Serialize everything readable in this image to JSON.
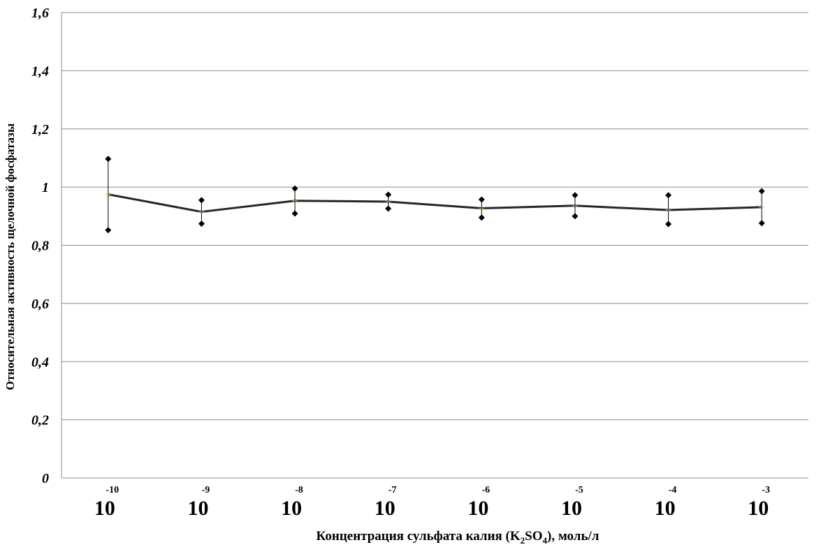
{
  "chart_data": {
    "type": "line",
    "title": "",
    "xlabel": {
      "prefix": "Концентрация сульфата калия (K",
      "sub1": "2",
      "mid": "SO",
      "sub2": "4",
      "suffix": "), моль/л"
    },
    "ylabel": "Относительная активность щелочной фосфатазы",
    "ylim": [
      0,
      1.6
    ],
    "yticks": [
      "0",
      "0,2",
      "0,4",
      "0,6",
      "0,8",
      "1",
      "1,2",
      "1,4",
      "1,6"
    ],
    "ytick_values": [
      0,
      0.2,
      0.4,
      0.6,
      0.8,
      1.0,
      1.2,
      1.4,
      1.6
    ],
    "x_base": "10",
    "x_exponents": [
      "-10",
      "-9",
      "-8",
      "-7",
      "-6",
      "-5",
      "-4",
      "-3"
    ],
    "grid": true,
    "legend": "none",
    "series": [
      {
        "values": [
          0.975,
          0.915,
          0.953,
          0.95,
          0.927,
          0.936,
          0.921,
          0.931
        ],
        "err_high": [
          1.097,
          0.955,
          0.995,
          0.974,
          0.957,
          0.972,
          0.972,
          0.986
        ],
        "err_low": [
          0.852,
          0.874,
          0.909,
          0.926,
          0.895,
          0.9,
          0.873,
          0.876
        ],
        "color": "#262626",
        "marker_color": "#000000"
      }
    ]
  }
}
